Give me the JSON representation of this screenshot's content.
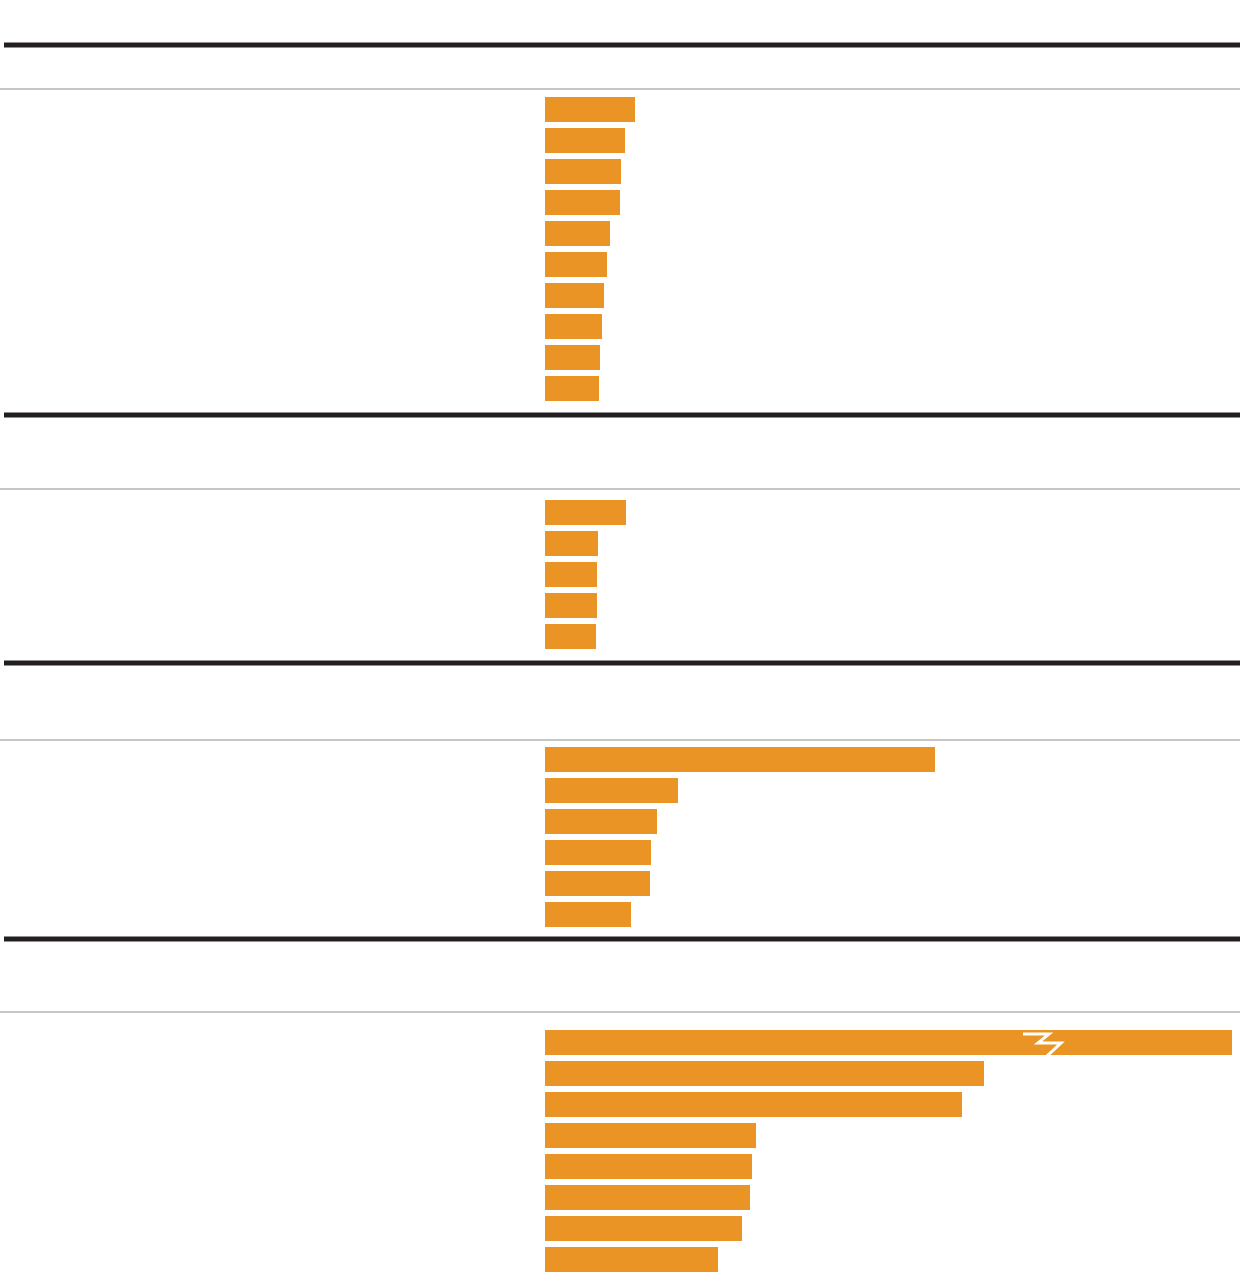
{
  "colors": {
    "bar": "#EB9426",
    "section_rule": "#231F20",
    "header_rule": "#8C8C8C",
    "break_mark": "#FFFFFF"
  },
  "chart_data": [
    {
      "type": "bar",
      "orientation": "horizontal",
      "title": "",
      "xlabel": "",
      "ylabel": "",
      "categories": [
        "",
        "",
        "",
        "",
        "",
        "",
        "",
        "",
        "",
        ""
      ],
      "values": [
        90,
        80,
        76,
        75,
        65,
        62,
        59,
        57,
        55,
        54
      ],
      "xlim": [
        0,
        700
      ],
      "axis_break": null
    },
    {
      "type": "bar",
      "orientation": "horizontal",
      "title": "",
      "xlabel": "",
      "ylabel": "",
      "categories": [
        "",
        "",
        "",
        "",
        ""
      ],
      "values": [
        81,
        53,
        52,
        52,
        51
      ],
      "xlim": [
        0,
        700
      ],
      "axis_break": null
    },
    {
      "type": "bar",
      "orientation": "horizontal",
      "title": "",
      "xlabel": "",
      "ylabel": "",
      "categories": [
        "",
        "",
        "",
        "",
        "",
        ""
      ],
      "values": [
        390,
        133,
        112,
        106,
        105,
        86
      ],
      "xlim": [
        0,
        700
      ],
      "axis_break": null
    },
    {
      "type": "bar",
      "orientation": "horizontal",
      "title": "",
      "xlabel": "",
      "ylabel": "",
      "categories": [
        "",
        "",
        "",
        "",
        "",
        "",
        "",
        ""
      ],
      "values": [
        687,
        439,
        417,
        211,
        207,
        205,
        197,
        173
      ],
      "xlim": [
        0,
        700
      ],
      "axis_break": {
        "bar_index": 0,
        "at_value": 490
      }
    }
  ]
}
